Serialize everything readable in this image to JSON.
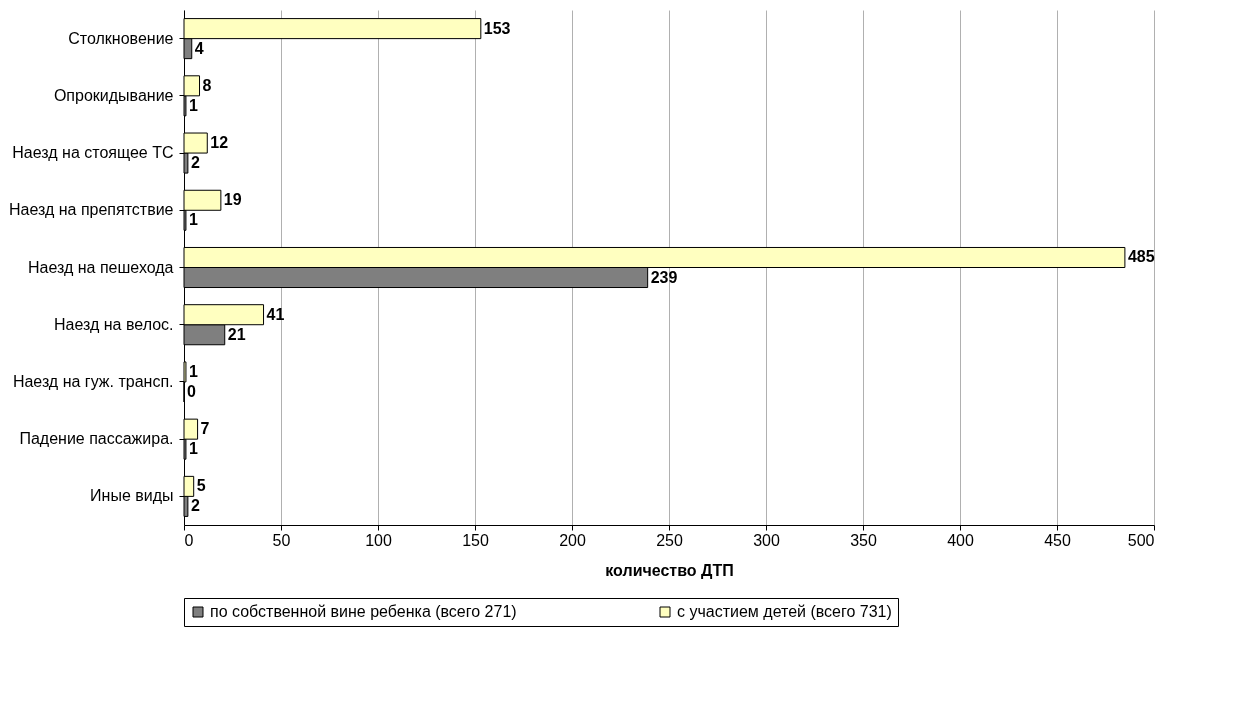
{
  "chart_data": {
    "type": "bar",
    "orientation": "horizontal",
    "xlabel": "количество ДТП",
    "categories": [
      "Столкновение",
      "Опрокидывание",
      "Наезд на стоящее ТС",
      "Наезд на препятствие",
      "Наезд на пешехода",
      "Наезд на велос.",
      "Наезд на гуж. трансп.",
      "Падение пассажира.",
      "Иные виды"
    ],
    "series": [
      {
        "name": "по собственной вине ребенка (всего 271)",
        "color": "#7f7f7f",
        "values": [
          4,
          1,
          2,
          1,
          239,
          21,
          0,
          1,
          2
        ]
      },
      {
        "name": "с участием детей (всего 731)",
        "color": "#ffffc0",
        "values": [
          153,
          8,
          12,
          19,
          485,
          41,
          1,
          7,
          5
        ]
      }
    ],
    "xlim": [
      0,
      500
    ],
    "xticks": [
      0,
      50,
      100,
      150,
      200,
      250,
      300,
      350,
      400,
      450,
      500
    ],
    "grid": "x",
    "legend": "bottom",
    "data_labels": true
  }
}
